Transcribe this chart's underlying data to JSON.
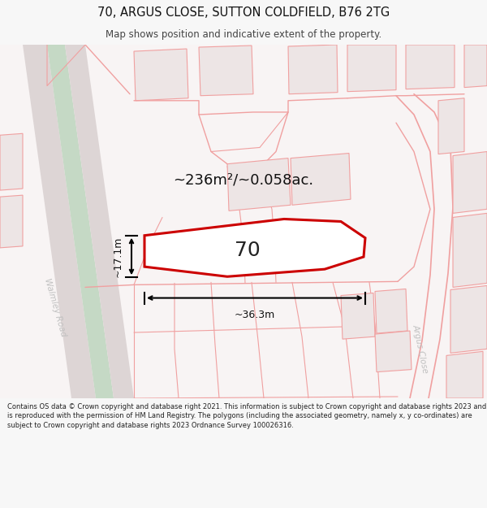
{
  "title": "70, ARGUS CLOSE, SUTTON COLDFIELD, B76 2TG",
  "subtitle": "Map shows position and indicative extent of the property.",
  "footer": "Contains OS data © Crown copyright and database right 2021. This information is subject to Crown copyright and database rights 2023 and is reproduced with the permission of HM Land Registry. The polygons (including the associated geometry, namely x, y co-ordinates) are subject to Crown copyright and database rights 2023 Ordnance Survey 100026316.",
  "area_label": "~236m²/~0.058ac.",
  "width_label": "~36.3m",
  "height_label": "~17.1m",
  "plot_number": "70",
  "fig_bg": "#f7f7f7",
  "map_bg": "#f5eded",
  "road_gray": "#e0d8d8",
  "green_verge": "#c8ddc8",
  "pink": "#f0a0a0",
  "red_plot": "#cc0000",
  "building_fill": "#d8cecece",
  "black": "#000000",
  "text_dark": "#111111",
  "text_gray": "#bbbbbb"
}
